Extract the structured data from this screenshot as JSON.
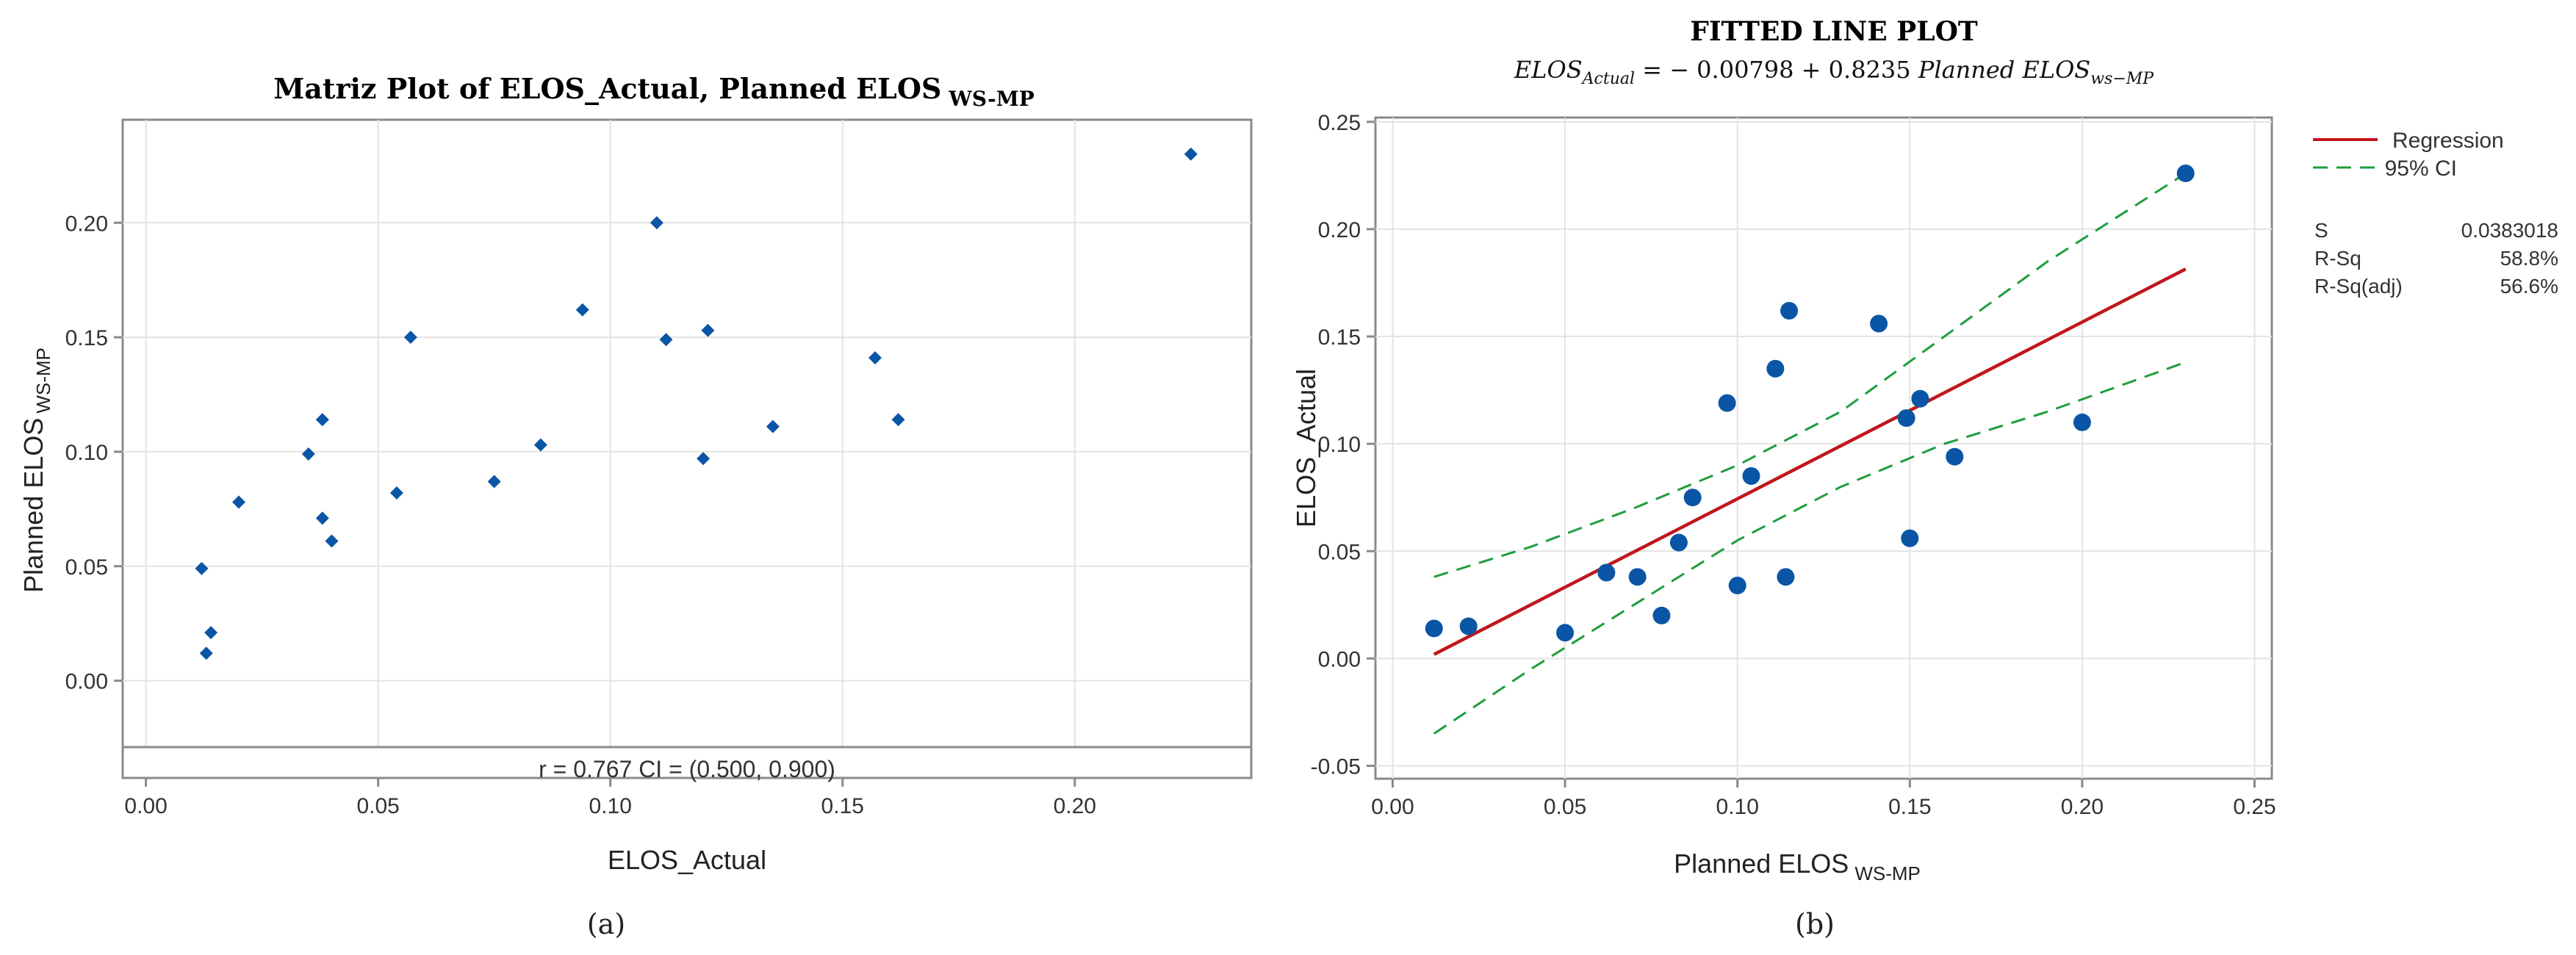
{
  "chart_data": [
    {
      "panel_label": "(a)",
      "type": "scatter",
      "title": "Matriz Plot of ELOS_Actual, Planned ELOS",
      "title_sub": "WS-MP",
      "xlabel": "ELOS_Actual",
      "ylabel": "Planned ELOS",
      "ylabel_sub": "WS-MP",
      "xlim": [
        -0.005,
        0.238
      ],
      "ylim": [
        -0.029,
        0.245
      ],
      "xticks": [
        0.0,
        0.05,
        0.1,
        0.15,
        0.2
      ],
      "yticks": [
        0.0,
        0.05,
        0.1,
        0.15,
        0.2
      ],
      "xtick_labels": [
        "0.00",
        "0.05",
        "0.10",
        "0.15",
        "0.20"
      ],
      "ytick_labels": [
        "0.00",
        "0.05",
        "0.10",
        "0.15",
        "0.20"
      ],
      "annotation": "r = 0.767  CI = (0.500, 0.900)",
      "marker_color": "#0a55a6",
      "points": [
        {
          "x": 0.225,
          "y": 0.23
        },
        {
          "x": 0.11,
          "y": 0.2
        },
        {
          "x": 0.094,
          "y": 0.162
        },
        {
          "x": 0.121,
          "y": 0.153
        },
        {
          "x": 0.057,
          "y": 0.15
        },
        {
          "x": 0.112,
          "y": 0.149
        },
        {
          "x": 0.157,
          "y": 0.141
        },
        {
          "x": 0.038,
          "y": 0.114
        },
        {
          "x": 0.162,
          "y": 0.114
        },
        {
          "x": 0.135,
          "y": 0.111
        },
        {
          "x": 0.085,
          "y": 0.103
        },
        {
          "x": 0.035,
          "y": 0.099
        },
        {
          "x": 0.12,
          "y": 0.097
        },
        {
          "x": 0.075,
          "y": 0.087
        },
        {
          "x": 0.054,
          "y": 0.082
        },
        {
          "x": 0.02,
          "y": 0.078
        },
        {
          "x": 0.038,
          "y": 0.071
        },
        {
          "x": 0.04,
          "y": 0.061
        },
        {
          "x": 0.012,
          "y": 0.049
        },
        {
          "x": 0.014,
          "y": 0.021
        },
        {
          "x": 0.013,
          "y": 0.012
        }
      ]
    },
    {
      "panel_label": "(b)",
      "type": "scatter",
      "title": "FITTED LINE PLOT",
      "equation": "ELOS_Actual = − 0.00798 + 0.8235 Planned ELOS_ws−MP",
      "xlabel": "Planned ELOS",
      "xlabel_sub": "WS-MP",
      "ylabel": "ELOS_Actual",
      "xlim": [
        -0.005,
        0.255
      ],
      "ylim": [
        -0.056,
        0.252
      ],
      "xticks": [
        0.0,
        0.05,
        0.1,
        0.15,
        0.2,
        0.25
      ],
      "yticks": [
        -0.05,
        0.0,
        0.05,
        0.1,
        0.15,
        0.2,
        0.25
      ],
      "xtick_labels": [
        "0.00",
        "0.05",
        "0.10",
        "0.15",
        "0.20",
        "0.25"
      ],
      "ytick_labels": [
        "-0.05",
        "0.00",
        "0.05",
        "0.10",
        "0.15",
        "0.20",
        "0.25"
      ],
      "marker_color": "#0a55a6",
      "regression": {
        "intercept": -0.00798,
        "slope": 0.8235,
        "x_range": [
          0.012,
          0.23
        ],
        "color": "#c0161c"
      },
      "ci_lower": [
        {
          "x": 0.012,
          "y": -0.035
        },
        {
          "x": 0.04,
          "y": -0.005
        },
        {
          "x": 0.07,
          "y": 0.025
        },
        {
          "x": 0.1,
          "y": 0.055
        },
        {
          "x": 0.13,
          "y": 0.08
        },
        {
          "x": 0.16,
          "y": 0.1
        },
        {
          "x": 0.19,
          "y": 0.115
        },
        {
          "x": 0.23,
          "y": 0.138
        }
      ],
      "ci_upper": [
        {
          "x": 0.012,
          "y": 0.038
        },
        {
          "x": 0.04,
          "y": 0.052
        },
        {
          "x": 0.07,
          "y": 0.07
        },
        {
          "x": 0.1,
          "y": 0.09
        },
        {
          "x": 0.13,
          "y": 0.115
        },
        {
          "x": 0.16,
          "y": 0.15
        },
        {
          "x": 0.19,
          "y": 0.185
        },
        {
          "x": 0.23,
          "y": 0.226
        }
      ],
      "ci_color": "#1e9e3c",
      "legend": [
        {
          "label": "Regression",
          "style": "solid"
        },
        {
          "label": "95% CI",
          "style": "dashed"
        }
      ],
      "stats": [
        {
          "name": "S",
          "value": "0.0383018"
        },
        {
          "name": "R-Sq",
          "value": "58.8%"
        },
        {
          "name": "R-Sq(adj)",
          "value": "56.6%"
        }
      ],
      "points": [
        {
          "x": 0.23,
          "y": 0.226
        },
        {
          "x": 0.115,
          "y": 0.162
        },
        {
          "x": 0.141,
          "y": 0.156
        },
        {
          "x": 0.111,
          "y": 0.135
        },
        {
          "x": 0.153,
          "y": 0.121
        },
        {
          "x": 0.097,
          "y": 0.119
        },
        {
          "x": 0.149,
          "y": 0.112
        },
        {
          "x": 0.2,
          "y": 0.11
        },
        {
          "x": 0.163,
          "y": 0.094
        },
        {
          "x": 0.104,
          "y": 0.085
        },
        {
          "x": 0.087,
          "y": 0.075
        },
        {
          "x": 0.15,
          "y": 0.056
        },
        {
          "x": 0.083,
          "y": 0.054
        },
        {
          "x": 0.062,
          "y": 0.04
        },
        {
          "x": 0.071,
          "y": 0.038
        },
        {
          "x": 0.114,
          "y": 0.038
        },
        {
          "x": 0.1,
          "y": 0.034
        },
        {
          "x": 0.078,
          "y": 0.02
        },
        {
          "x": 0.022,
          "y": 0.015
        },
        {
          "x": 0.012,
          "y": 0.014
        },
        {
          "x": 0.05,
          "y": 0.012
        }
      ]
    }
  ]
}
